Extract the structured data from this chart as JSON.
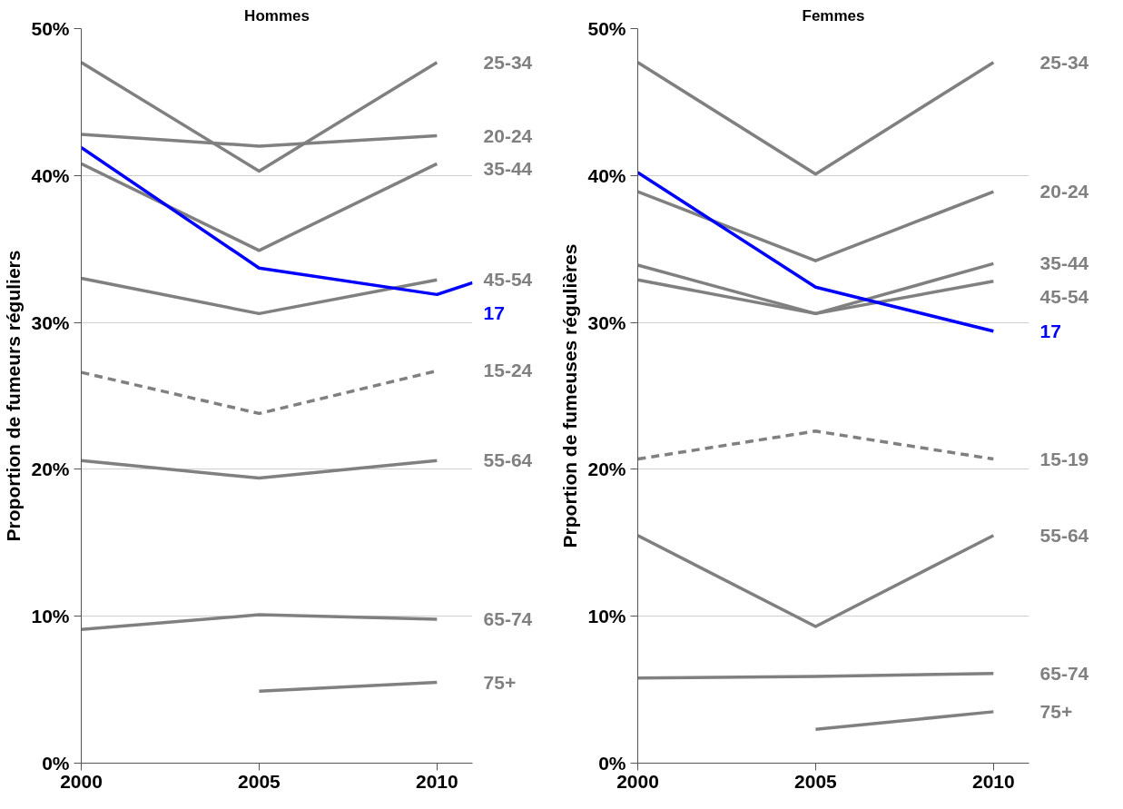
{
  "chart_data": [
    {
      "type": "line",
      "title": "Hommes",
      "ylabel": "Proportion de fumeurs réguliers",
      "x": [
        2000,
        2005,
        2010
      ],
      "xlim": [
        2000,
        2011
      ],
      "xticks": [
        2000,
        2005,
        2010
      ],
      "ylim": [
        0,
        50
      ],
      "yticks": [
        {
          "value": 0,
          "label": "0%"
        },
        {
          "value": 10,
          "label": "10%"
        },
        {
          "value": 20,
          "label": "20%"
        },
        {
          "value": 30,
          "label": "30%"
        },
        {
          "value": 40,
          "label": "40%"
        },
        {
          "value": 50,
          "label": "50%"
        }
      ],
      "grid": "y",
      "marker": "none",
      "series": [
        {
          "name": "25-34",
          "color": "#808080",
          "values": [
            47.7,
            40.3,
            47.7
          ]
        },
        {
          "name": "20-24",
          "color": "#808080",
          "values": [
            42.8,
            42.0,
            42.7
          ]
        },
        {
          "name": "35-44",
          "color": "#808080",
          "values": [
            40.8,
            34.9,
            40.8
          ]
        },
        {
          "name": "45-54",
          "color": "#808080",
          "values": [
            33.0,
            30.6,
            32.9
          ]
        },
        {
          "name": "17",
          "color": "#0000ff",
          "x": [
            2000,
            2005,
            2010,
            2011
          ],
          "values": [
            41.9,
            33.7,
            31.9,
            32.7
          ]
        },
        {
          "name": "15-24",
          "color": "#808080",
          "line_style": "dashed",
          "values": [
            26.6,
            23.8,
            26.7
          ]
        },
        {
          "name": "55-64",
          "color": "#808080",
          "values": [
            20.6,
            19.4,
            20.6
          ]
        },
        {
          "name": "65-74",
          "color": "#808080",
          "values": [
            9.1,
            10.1,
            9.8
          ]
        },
        {
          "name": "75+",
          "color": "#808080",
          "values": [
            null,
            4.9,
            5.5
          ]
        }
      ]
    },
    {
      "type": "line",
      "title": "Femmes",
      "ylabel": "Prportion de fumeuses régulières",
      "x": [
        2000,
        2005,
        2010
      ],
      "xlim": [
        2000,
        2011
      ],
      "xticks": [
        2000,
        2005,
        2010
      ],
      "ylim": [
        0,
        50
      ],
      "yticks": [
        {
          "value": 0,
          "label": "0%"
        },
        {
          "value": 10,
          "label": "10%"
        },
        {
          "value": 20,
          "label": "20%"
        },
        {
          "value": 30,
          "label": "30%"
        },
        {
          "value": 40,
          "label": "40%"
        },
        {
          "value": 50,
          "label": "50%"
        }
      ],
      "grid": "y",
      "marker": "none",
      "series": [
        {
          "name": "25-34",
          "color": "#808080",
          "values": [
            47.7,
            40.1,
            47.7
          ]
        },
        {
          "name": "20-24",
          "color": "#808080",
          "values": [
            38.9,
            34.2,
            38.9
          ]
        },
        {
          "name": "35-44",
          "color": "#808080",
          "values": [
            33.9,
            30.6,
            34.0
          ]
        },
        {
          "name": "45-54",
          "color": "#808080",
          "values": [
            32.9,
            30.6,
            32.8
          ]
        },
        {
          "name": "17",
          "color": "#0000ff",
          "values": [
            40.2,
            32.4,
            29.4
          ]
        },
        {
          "name": "15-19",
          "color": "#808080",
          "line_style": "dashed",
          "values": [
            20.7,
            22.6,
            20.7
          ]
        },
        {
          "name": "55-64",
          "color": "#808080",
          "values": [
            15.5,
            9.3,
            15.5
          ]
        },
        {
          "name": "65-74",
          "color": "#808080",
          "values": [
            5.8,
            5.9,
            6.1
          ]
        },
        {
          "name": "75+",
          "color": "#808080",
          "values": [
            null,
            2.3,
            3.5
          ]
        }
      ]
    }
  ]
}
